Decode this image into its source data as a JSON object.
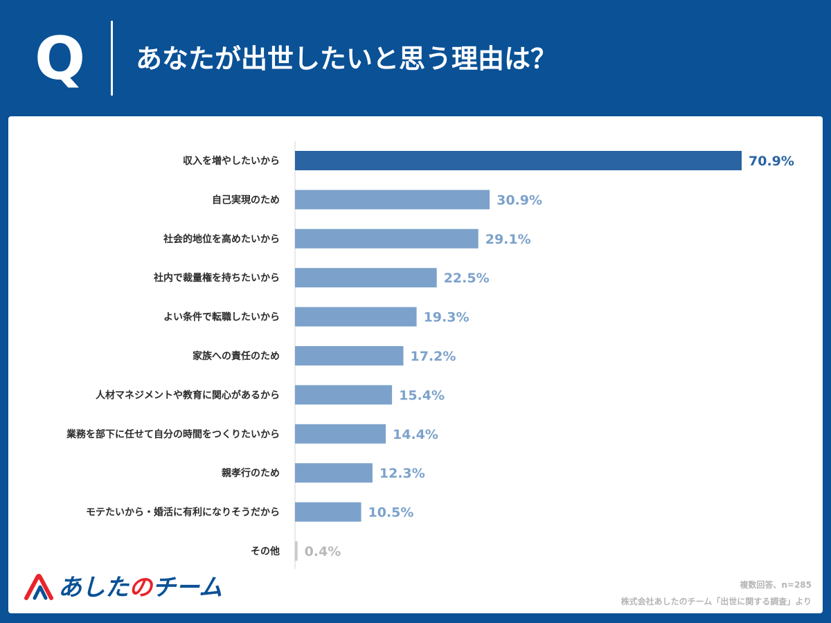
{
  "question": {
    "letter": "Q",
    "title": "あなたが出世したいと思う理由は？"
  },
  "colors": {
    "header_bg": "#0a5196",
    "top_bar": "#2a64a3",
    "bar": "#7ca2cb",
    "other_bar": "#c9c9c9",
    "brand_red": "#e8242b"
  },
  "chart_data": {
    "type": "bar",
    "orientation": "horizontal",
    "categories": [
      "収入を増やしたいから",
      "自己実現のため",
      "社会的地位を高めたいから",
      "社内で裁量権を持ちたいから",
      "よい条件で転職したいから",
      "家族への責任のため",
      "人材マネジメントや教育に関心があるから",
      "業務を部下に任せて自分の時間をつくりたいから",
      "親孝行のため",
      "モテたいから・婚活に有利になりそうだから",
      "その他"
    ],
    "values": [
      70.9,
      30.9,
      29.1,
      22.5,
      19.3,
      17.2,
      15.4,
      14.4,
      12.3,
      10.5,
      0.4
    ],
    "value_labels": [
      "70.9%",
      "30.9%",
      "29.1%",
      "22.5%",
      "19.3%",
      "17.2%",
      "15.4%",
      "14.4%",
      "12.3%",
      "10.5%",
      "0.4%"
    ],
    "unit": "%",
    "xlim": [
      0,
      70.9
    ],
    "grid": false,
    "legend": "none"
  },
  "footer": {
    "brand": {
      "part1": "あした",
      "part2": "の",
      "part3": "チーム"
    },
    "note1": "複数回答、n=285",
    "note2": "株式会社あしたのチーム「出世に関する調査」より"
  }
}
